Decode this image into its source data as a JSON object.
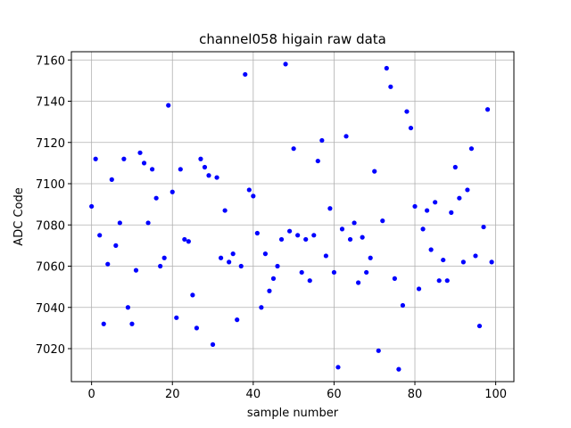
{
  "chart_data": {
    "type": "scatter",
    "title": "channel058 higain raw data",
    "xlabel": "sample number",
    "ylabel": "ADC Code",
    "xlim": [
      -5,
      104.5
    ],
    "ylim": [
      7004,
      7164
    ],
    "grid": true,
    "marker_color": "#0000ff",
    "x_ticks": [
      0,
      20,
      40,
      60,
      80,
      100
    ],
    "y_ticks": [
      7020,
      7040,
      7060,
      7080,
      7100,
      7120,
      7140,
      7160
    ],
    "x": [
      0,
      1,
      2,
      3,
      4,
      5,
      6,
      7,
      8,
      9,
      10,
      11,
      12,
      13,
      14,
      15,
      16,
      17,
      18,
      19,
      20,
      21,
      22,
      23,
      24,
      25,
      26,
      27,
      28,
      29,
      30,
      31,
      32,
      33,
      34,
      35,
      36,
      37,
      38,
      39,
      40,
      41,
      42,
      43,
      44,
      45,
      46,
      47,
      48,
      49,
      50,
      51,
      52,
      53,
      54,
      55,
      56,
      57,
      58,
      59,
      60,
      61,
      62,
      63,
      64,
      65,
      66,
      67,
      68,
      69,
      70,
      71,
      72,
      73,
      74,
      75,
      76,
      77,
      78,
      79,
      80,
      81,
      82,
      83,
      84,
      85,
      86,
      87,
      88,
      89,
      90,
      91,
      92,
      93,
      94,
      95,
      96,
      97,
      98,
      99
    ],
    "y": [
      7089,
      7112,
      7075,
      7032,
      7061,
      7102,
      7070,
      7081,
      7112,
      7040,
      7032,
      7058,
      7115,
      7110,
      7081,
      7107,
      7093,
      7060,
      7064,
      7138,
      7096,
      7035,
      7107,
      7073,
      7072,
      7046,
      7030,
      7112,
      7108,
      7104,
      7022,
      7103,
      7064,
      7087,
      7062,
      7066,
      7034,
      7060,
      7153,
      7097,
      7094,
      7076,
      7040,
      7066,
      7048,
      7054,
      7060,
      7073,
      7158,
      7077,
      7117,
      7075,
      7057,
      7073,
      7053,
      7075,
      7111,
      7121,
      7065,
      7088,
      7057,
      7011,
      7078,
      7123,
      7073,
      7081,
      7052,
      7074,
      7057,
      7064,
      7106,
      7019,
      7082,
      7156,
      7147,
      7054,
      7010,
      7041,
      7135,
      7127,
      7089,
      7049,
      7078,
      7087,
      7068,
      7091,
      7053,
      7063,
      7053,
      7086,
      7108,
      7093,
      7062,
      7097,
      7117,
      7065,
      7031,
      7079,
      7136,
      7062
    ]
  }
}
